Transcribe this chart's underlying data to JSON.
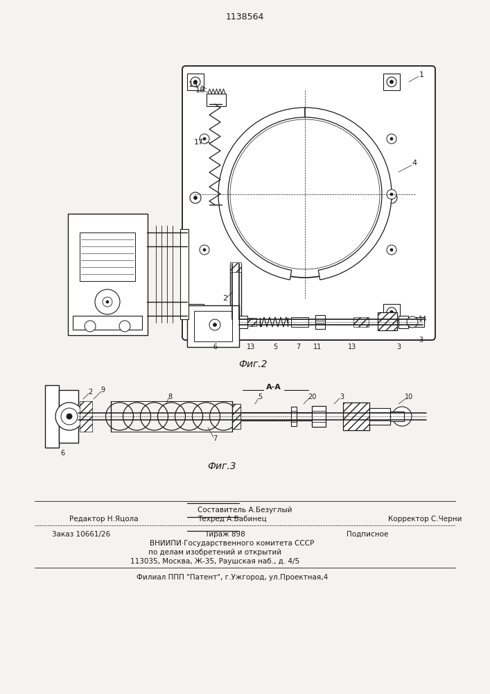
{
  "patent_number": "1138564",
  "fig2_caption": "Фиг.2",
  "fig3_caption": "Фиг.3",
  "fig3_section_label": "А-А",
  "bg_color": "#f5f3f0",
  "line_color": "#1a1a1a",
  "footer_sestavitel": "Составитель А.Безуглый",
  "footer_redaktor": "Редактор Н.Яцола",
  "footer_tehred": "Техред А.Бабинец",
  "footer_korrektor": "Корректор С.Черни",
  "footer_zakaz": "Заказ 10661/26",
  "footer_tirazh": "Тираж 898",
  "footer_podpisnoe": "Подписное",
  "footer_vniipи": "ВНИИПИ·Государственного комитета СССР",
  "footer_podel": "по делам изобретений и открытий",
  "footer_addr": "113035, Москва, Ж-35, Раушская наб., д. 4/5",
  "footer_filial": "Филиал ППП \"Патент\", г.Ужгород, ул.Проектная,4",
  "figsize": [
    7.07,
    10.0
  ],
  "dpi": 100
}
